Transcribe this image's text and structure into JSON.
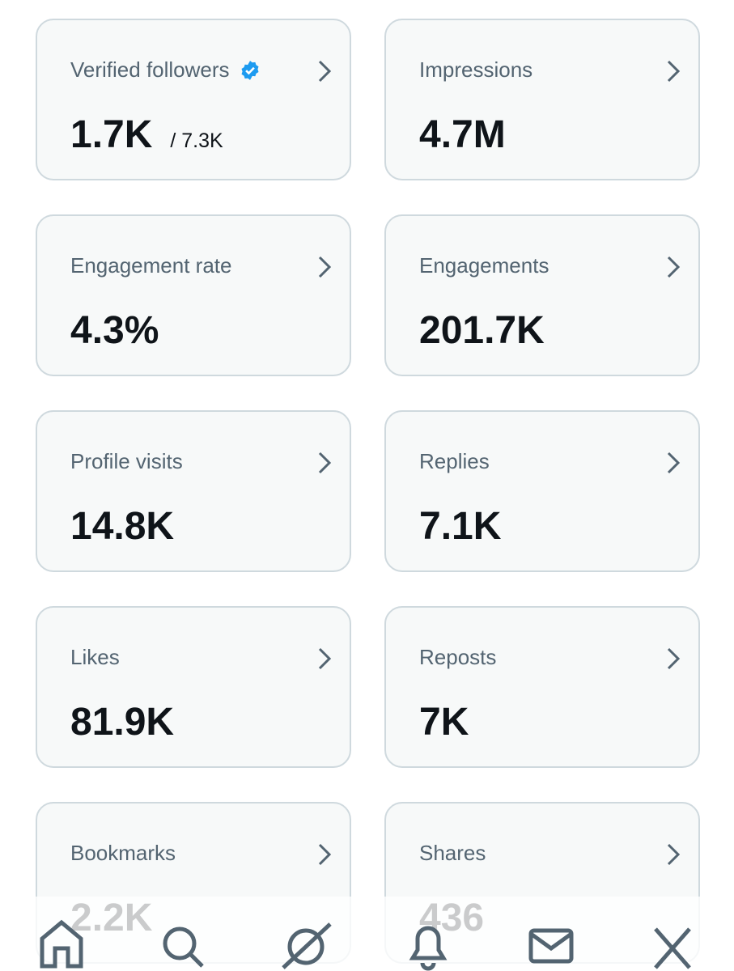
{
  "cards": [
    {
      "label": "Verified followers",
      "value": "1.7K",
      "sub": "/ 7.3K",
      "verified": true
    },
    {
      "label": "Impressions",
      "value": "4.7M"
    },
    {
      "label": "Engagement rate",
      "value": "4.3%"
    },
    {
      "label": "Engagements",
      "value": "201.7K"
    },
    {
      "label": "Profile visits",
      "value": "14.8K"
    },
    {
      "label": "Replies",
      "value": "7.1K"
    },
    {
      "label": "Likes",
      "value": "81.9K"
    },
    {
      "label": "Reposts",
      "value": "7K"
    },
    {
      "label": "Bookmarks",
      "value": "2.2K"
    },
    {
      "label": "Shares",
      "value": "436"
    }
  ]
}
